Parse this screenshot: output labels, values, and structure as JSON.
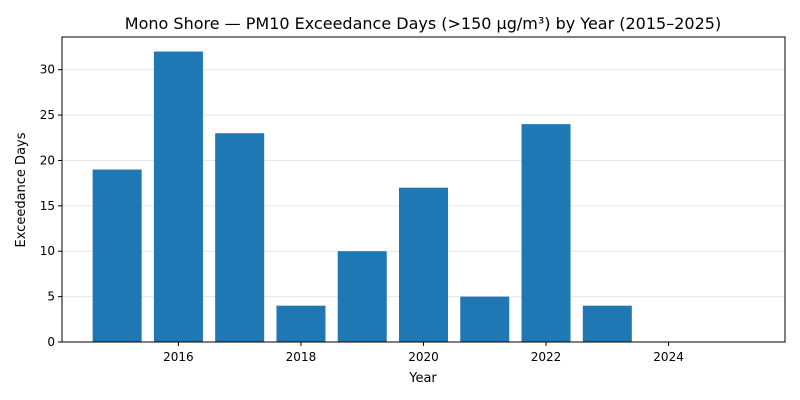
{
  "chart_data": {
    "type": "bar",
    "title": "Mono Shore — PM10 Exceedance Days (>150 µg/m³) by Year (2015–2025)",
    "xlabel": "Year",
    "ylabel": "Exceedance Days",
    "categories": [
      2015,
      2016,
      2017,
      2018,
      2019,
      2020,
      2021,
      2022,
      2023,
      2024,
      2025
    ],
    "values": [
      19,
      32,
      23,
      4,
      10,
      17,
      5,
      24,
      4,
      0,
      0
    ],
    "xlim": [
      2014.1,
      2025.9
    ],
    "ylim": [
      0,
      33.6
    ],
    "xticks": [
      2016,
      2018,
      2020,
      2022,
      2024
    ],
    "yticks": [
      0,
      5,
      10,
      15,
      20,
      25,
      30
    ],
    "grid": "y",
    "bar_color": "#1f77b4"
  }
}
